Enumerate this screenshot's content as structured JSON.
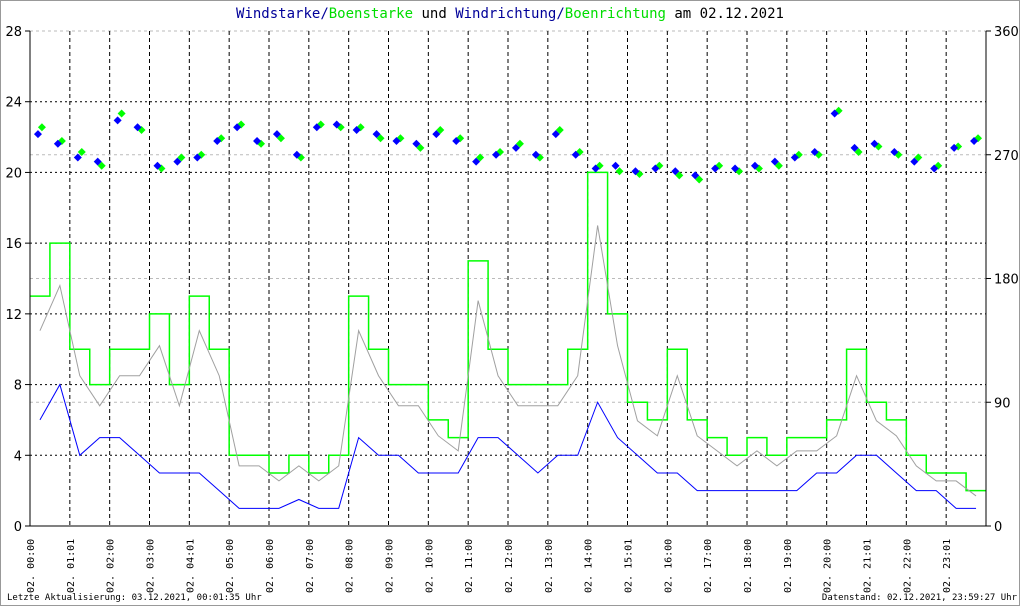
{
  "title": {
    "part1": "Windstarke",
    "sep1": "/",
    "part2": "Boenstarke",
    "mid": " und ",
    "part3": "Windrichtung",
    "sep2": "/",
    "part4": "Boenrichtung",
    "tail": " am 02.12.2021"
  },
  "footer": {
    "left": "Letzte Aktualisierung: 03.12.2021, 00:01:35 Uhr",
    "right": "Datenstand: 02.12.2021, 23:59:27 Uhr"
  },
  "colors": {
    "wind": "#0000ff",
    "gust": "#00ff00",
    "gust_gray": "#a0a0a0",
    "title_blue": "#000099"
  },
  "chart_data": {
    "type": "line",
    "title": "Windstarke/Boenstarke und Windrichtung/Boenrichtung am 02.12.2021",
    "y_left": {
      "range": [
        0,
        28
      ],
      "ticks": [
        "0",
        "4",
        "8",
        "12",
        "16",
        "20",
        "24",
        "28"
      ],
      "tick_values": [
        0,
        4,
        8,
        12,
        16,
        20,
        24,
        28
      ]
    },
    "y_right": {
      "range": [
        0,
        360
      ],
      "ticks": [
        "0",
        "90",
        "180",
        "270",
        "360"
      ],
      "tick_values": [
        0,
        90,
        180,
        270,
        360
      ]
    },
    "x_ticks": [
      "02. 00:00",
      "02. 01:01",
      "02. 02:00",
      "02. 03:00",
      "02. 04:01",
      "02. 05:00",
      "02. 06:00",
      "02. 07:00",
      "02. 08:00",
      "02. 09:00",
      "02. 10:00",
      "02. 11:00",
      "02. 12:00",
      "02. 13:00",
      "02. 14:00",
      "02. 15:01",
      "02. 16:00",
      "02. 17:00",
      "02. 18:00",
      "02. 19:00",
      "02. 20:00",
      "02. 21:01",
      "02. 22:00",
      "02. 23:01"
    ],
    "x_hours": [
      0,
      0.5,
      1,
      1.5,
      2,
      2.5,
      3,
      3.5,
      4,
      4.5,
      5,
      5.5,
      6,
      6.5,
      7,
      7.5,
      8,
      8.5,
      9,
      9.5,
      10,
      10.5,
      11,
      11.5,
      12,
      12.5,
      13,
      13.5,
      14,
      14.5,
      15,
      15.5,
      16,
      16.5,
      17,
      17.5,
      18,
      18.5,
      19,
      19.5,
      20,
      20.5,
      21,
      21.5,
      22,
      22.5,
      23,
      23.5
    ],
    "series": [
      {
        "name": "Windstarke",
        "axis": "left",
        "style": "line",
        "values": [
          6,
          8,
          4,
          5,
          5,
          4,
          3,
          3,
          3,
          2,
          1,
          1,
          1,
          1.5,
          1,
          1,
          5,
          4,
          4,
          3,
          3,
          3,
          5,
          5,
          4,
          3,
          4,
          4,
          7,
          5,
          4,
          3,
          3,
          2,
          2,
          2,
          2,
          2,
          2,
          3,
          3,
          4,
          4,
          3,
          2,
          2,
          1,
          1
        ]
      },
      {
        "name": "Boenstarke",
        "axis": "left",
        "style": "step",
        "values": [
          13,
          16,
          10,
          8,
          10,
          10,
          12,
          8,
          13,
          10,
          4,
          4,
          3,
          4,
          3,
          4,
          13,
          10,
          8,
          8,
          6,
          5,
          15,
          10,
          8,
          8,
          8,
          10,
          20,
          12,
          7,
          6,
          10,
          6,
          5,
          4,
          5,
          4,
          5,
          5,
          6,
          10,
          7,
          6,
          4,
          3,
          3,
          2
        ]
      },
      {
        "name": "Windrichtung",
        "axis": "right",
        "style": "points",
        "values": [
          285,
          278,
          268,
          265,
          295,
          290,
          262,
          265,
          268,
          280,
          290,
          280,
          285,
          270,
          290,
          292,
          288,
          285,
          280,
          278,
          285,
          280,
          265,
          270,
          275,
          270,
          285,
          270,
          260,
          262,
          258,
          260,
          258,
          255,
          260,
          260,
          262,
          265,
          268,
          272,
          300,
          275,
          278,
          272,
          265,
          260,
          275,
          280
        ]
      },
      {
        "name": "Boenrichtung",
        "axis": "right",
        "style": "points",
        "values": [
          290,
          280,
          272,
          262,
          300,
          288,
          260,
          268,
          270,
          282,
          292,
          278,
          282,
          268,
          292,
          290,
          290,
          282,
          282,
          275,
          288,
          282,
          268,
          272,
          278,
          268,
          288,
          272,
          262,
          258,
          256,
          262,
          255,
          252,
          262,
          258,
          260,
          262,
          270,
          270,
          302,
          272,
          276,
          270,
          268,
          262,
          276,
          282
        ]
      }
    ]
  }
}
